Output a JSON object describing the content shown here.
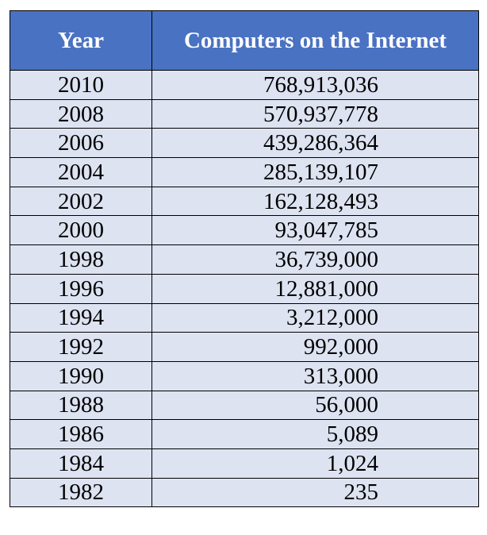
{
  "chart_data": {
    "type": "table",
    "columns": [
      "Year",
      "Computers on the Internet"
    ],
    "rows": [
      {
        "year": "2010",
        "computers": "768,913,036"
      },
      {
        "year": "2008",
        "computers": "570,937,778"
      },
      {
        "year": "2006",
        "computers": "439,286,364"
      },
      {
        "year": "2004",
        "computers": "285,139,107"
      },
      {
        "year": "2002",
        "computers": "162,128,493"
      },
      {
        "year": "2000",
        "computers": "93,047,785"
      },
      {
        "year": "1998",
        "computers": "36,739,000"
      },
      {
        "year": "1996",
        "computers": "12,881,000"
      },
      {
        "year": "1994",
        "computers": "3,212,000"
      },
      {
        "year": "1992",
        "computers": "992,000"
      },
      {
        "year": "1990",
        "computers": "313,000"
      },
      {
        "year": "1988",
        "computers": "56,000"
      },
      {
        "year": "1986",
        "computers": "5,089"
      },
      {
        "year": "1984",
        "computers": "1,024"
      },
      {
        "year": "1982",
        "computers": "235"
      }
    ]
  },
  "colors": {
    "header_background": "#4a72c2",
    "header_text": "#ffffff",
    "row_background": "#dde3f1",
    "border": "#000000"
  }
}
